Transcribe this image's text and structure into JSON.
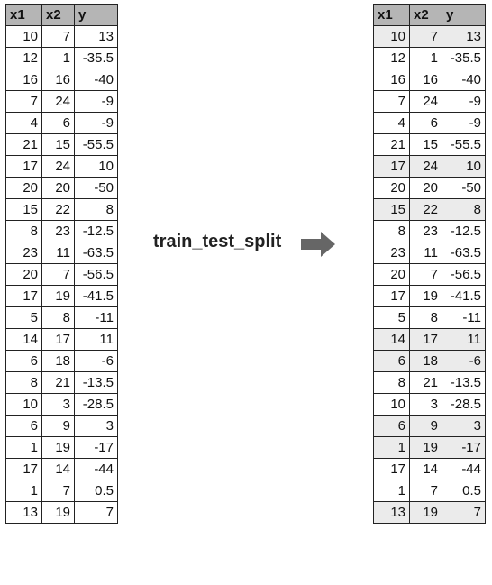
{
  "columns": [
    "x1",
    "x2",
    "y"
  ],
  "rows": [
    [
      "10",
      "7",
      "13"
    ],
    [
      "12",
      "1",
      "-35.5"
    ],
    [
      "16",
      "16",
      "-40"
    ],
    [
      "7",
      "24",
      "-9"
    ],
    [
      "4",
      "6",
      "-9"
    ],
    [
      "21",
      "15",
      "-55.5"
    ],
    [
      "17",
      "24",
      "10"
    ],
    [
      "20",
      "20",
      "-50"
    ],
    [
      "15",
      "22",
      "8"
    ],
    [
      "8",
      "23",
      "-12.5"
    ],
    [
      "23",
      "11",
      "-63.5"
    ],
    [
      "20",
      "7",
      "-56.5"
    ],
    [
      "17",
      "19",
      "-41.5"
    ],
    [
      "5",
      "8",
      "-11"
    ],
    [
      "14",
      "17",
      "11"
    ],
    [
      "6",
      "18",
      "-6"
    ],
    [
      "8",
      "21",
      "-13.5"
    ],
    [
      "10",
      "3",
      "-28.5"
    ],
    [
      "6",
      "9",
      "3"
    ],
    [
      "1",
      "19",
      "-17"
    ],
    [
      "17",
      "14",
      "-44"
    ],
    [
      "1",
      "7",
      "0.5"
    ],
    [
      "13",
      "19",
      "7"
    ]
  ],
  "highlighted_rows": [
    0,
    6,
    8,
    14,
    15,
    18,
    19,
    22
  ],
  "operation_label": "train_test_split",
  "colors": {
    "header": "#b5b5b5",
    "highlight": "#ebebeb",
    "arrow": "#666666"
  }
}
